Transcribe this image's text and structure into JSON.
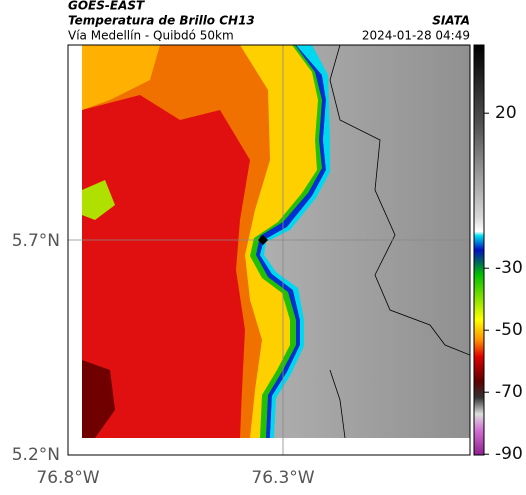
{
  "header": {
    "satellite": "GOES-EAST",
    "product": "Temperatura de Brillo CH13",
    "region": "Vía Medellín - Quibdó 50km",
    "organization": "SIATA",
    "timestamp": "2024-01-28 04:49"
  },
  "map": {
    "lat_labels": [
      "5.7°N",
      "5.2°N"
    ],
    "lon_labels": [
      "76.8°W",
      "76.3°W"
    ]
  },
  "colorbar": {
    "ticks": [
      20,
      -30,
      -50,
      -70,
      -90
    ]
  }
}
